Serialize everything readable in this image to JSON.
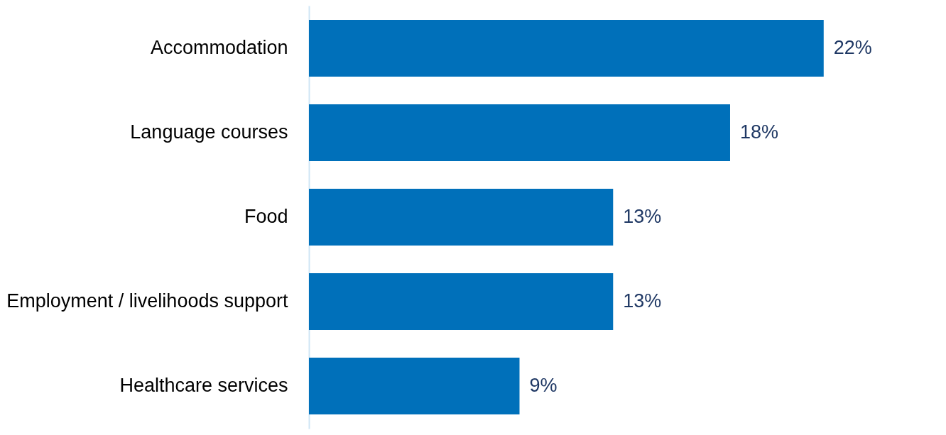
{
  "chart_data": {
    "type": "bar",
    "orientation": "horizontal",
    "categories": [
      "Accommodation",
      "Language courses",
      "Food",
      "Employment / livelihoods support",
      "Healthcare services"
    ],
    "values": [
      22,
      18,
      13,
      13,
      9
    ],
    "value_labels": [
      "22%",
      "18%",
      "13%",
      "13%",
      "9%"
    ],
    "color": "#0070ba"
  }
}
